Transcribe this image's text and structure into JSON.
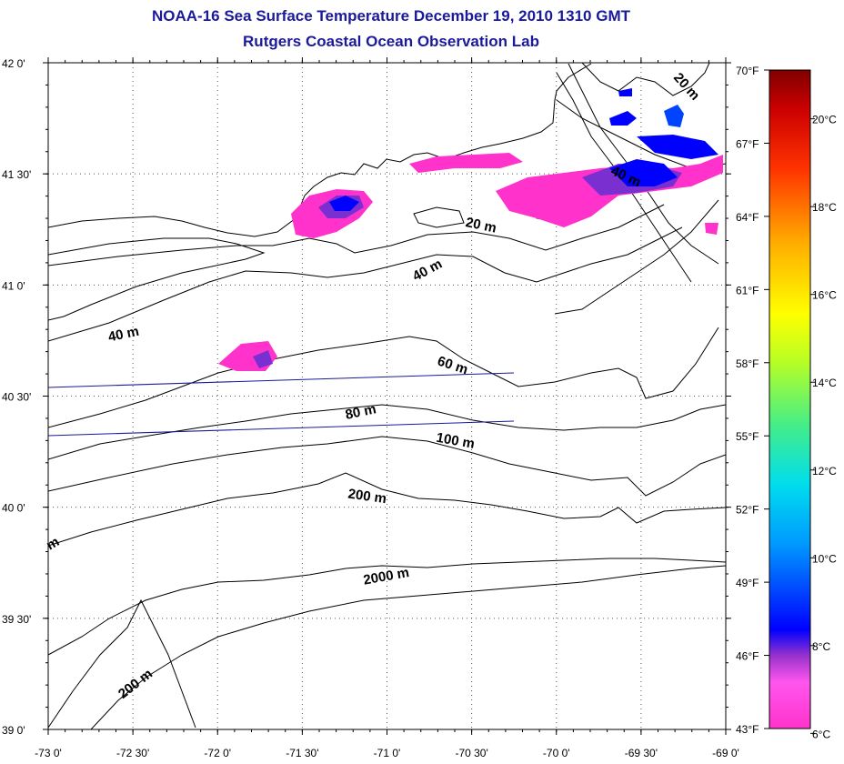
{
  "header": {
    "title": "NOAA-16 Sea Surface Temperature December 19, 2010 1310 GMT",
    "subtitle": "Rutgers Coastal Ocean Observation Lab"
  },
  "map": {
    "lon_range": [
      -73.0,
      -69.0
    ],
    "lat_range": [
      39.0,
      42.0
    ],
    "grid": "dotted",
    "lat_ticks": [
      {
        "value": 42.0,
        "label": "42 0'"
      },
      {
        "value": 41.5,
        "label": "41 30'"
      },
      {
        "value": 41.0,
        "label": "41 0'"
      },
      {
        "value": 40.5,
        "label": "40 30'"
      },
      {
        "value": 40.0,
        "label": "40 0'"
      },
      {
        "value": 39.5,
        "label": "39 30'"
      },
      {
        "value": 39.0,
        "label": "39 0'"
      }
    ],
    "lon_ticks": [
      {
        "value": -73.0,
        "label": "-73 0'"
      },
      {
        "value": -72.5,
        "label": "-72 30'"
      },
      {
        "value": -72.0,
        "label": "-72 0'"
      },
      {
        "value": -71.5,
        "label": "-71 30'"
      },
      {
        "value": -71.0,
        "label": "-71 0'"
      },
      {
        "value": -70.5,
        "label": "-70 30'"
      },
      {
        "value": -70.0,
        "label": "-70 0'"
      },
      {
        "value": -69.5,
        "label": "-69 30'"
      },
      {
        "value": -69.0,
        "label": "-69 0'"
      }
    ],
    "depth_labels": [
      {
        "text": "20 m",
        "lon": -70.45,
        "lat": 41.25,
        "rot": 12
      },
      {
        "text": "40 m",
        "lon": -70.75,
        "lat": 41.05,
        "rot": -28
      },
      {
        "text": "40 m",
        "lon": -72.55,
        "lat": 40.76,
        "rot": -12
      },
      {
        "text": "40 m",
        "lon": -69.6,
        "lat": 41.47,
        "rot": 25
      },
      {
        "text": "20 m",
        "lon": -69.25,
        "lat": 41.88,
        "rot": 48
      },
      {
        "text": "60 m",
        "lon": -70.62,
        "lat": 40.62,
        "rot": 18
      },
      {
        "text": "80 m",
        "lon": -71.15,
        "lat": 40.41,
        "rot": -12
      },
      {
        "text": "100 m",
        "lon": -70.6,
        "lat": 40.28,
        "rot": 10
      },
      {
        "text": "200 m",
        "lon": -71.12,
        "lat": 40.03,
        "rot": 8
      },
      {
        "text": "2000 m",
        "lon": -71.0,
        "lat": 39.67,
        "rot": -10
      },
      {
        "text": "200 m",
        "lon": -72.47,
        "lat": 39.19,
        "rot": -38
      },
      {
        "text": "m",
        "lon": -72.96,
        "lat": 39.82,
        "rot": -30
      }
    ]
  },
  "colorbar": {
    "fahrenheit": [
      {
        "value": 70,
        "label": "70°F"
      },
      {
        "value": 67,
        "label": "67°F"
      },
      {
        "value": 64,
        "label": "64°F"
      },
      {
        "value": 61,
        "label": "61°F"
      },
      {
        "value": 58,
        "label": "58°F"
      },
      {
        "value": 55,
        "label": "55°F"
      },
      {
        "value": 52,
        "label": "52°F"
      },
      {
        "value": 49,
        "label": "49°F"
      },
      {
        "value": 46,
        "label": "46°F"
      },
      {
        "value": 43,
        "label": "43°F"
      }
    ],
    "celsius": [
      {
        "value": 20,
        "label": "20°C"
      },
      {
        "value": 18,
        "label": "18°C"
      },
      {
        "value": 16,
        "label": "16°C"
      },
      {
        "value": 14,
        "label": "14°C"
      },
      {
        "value": 12,
        "label": "12°C"
      },
      {
        "value": 10,
        "label": "10°C"
      },
      {
        "value": 8,
        "label": "8°C"
      },
      {
        "value": 6,
        "label": "6°C"
      }
    ],
    "min_f": 43,
    "max_f": 70,
    "colors": [
      "#ff33cc",
      "#ff55ee",
      "#9933cc",
      "#0000ff",
      "#0088ff",
      "#00ddee",
      "#44ee88",
      "#aaff33",
      "#ffff00",
      "#ffaa00",
      "#ff4400",
      "#dd0000",
      "#880000"
    ]
  }
}
